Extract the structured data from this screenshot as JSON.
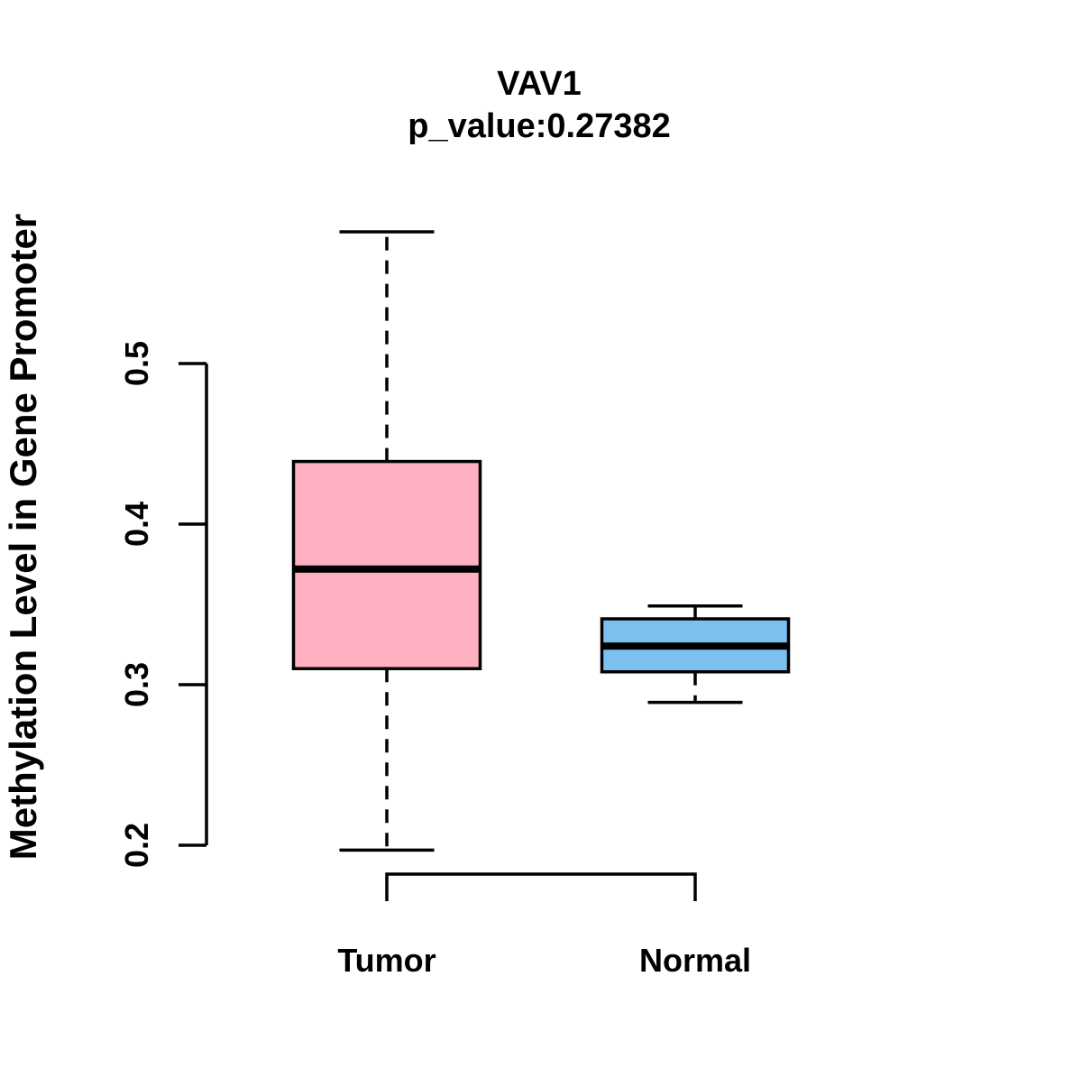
{
  "chart_data": {
    "type": "boxplot",
    "title": "VAV1",
    "subtitle": "p_value:0.27382",
    "ylabel": "Methylation Level in Gene Promoter",
    "xlabel": "",
    "categories": [
      "Tumor",
      "Normal"
    ],
    "y_ticks": [
      0.2,
      0.3,
      0.4,
      0.5
    ],
    "y_tick_labels": [
      "0.2",
      "0.3",
      "0.4",
      "0.5"
    ],
    "ylim": [
      0.17,
      0.6
    ],
    "grid": false,
    "legend": "none",
    "series": [
      {
        "name": "Tumor",
        "lower_whisker": 0.197,
        "q1": 0.31,
        "median": 0.372,
        "q3": 0.439,
        "upper_whisker": 0.582,
        "fill_color": "#FFB1C1"
      },
      {
        "name": "Normal",
        "lower_whisker": 0.289,
        "q1": 0.308,
        "median": 0.324,
        "q3": 0.341,
        "upper_whisker": 0.349,
        "fill_color": "#7CC0F0"
      }
    ],
    "stroke_color": "#000000",
    "background_color": "#FFFFFF"
  }
}
